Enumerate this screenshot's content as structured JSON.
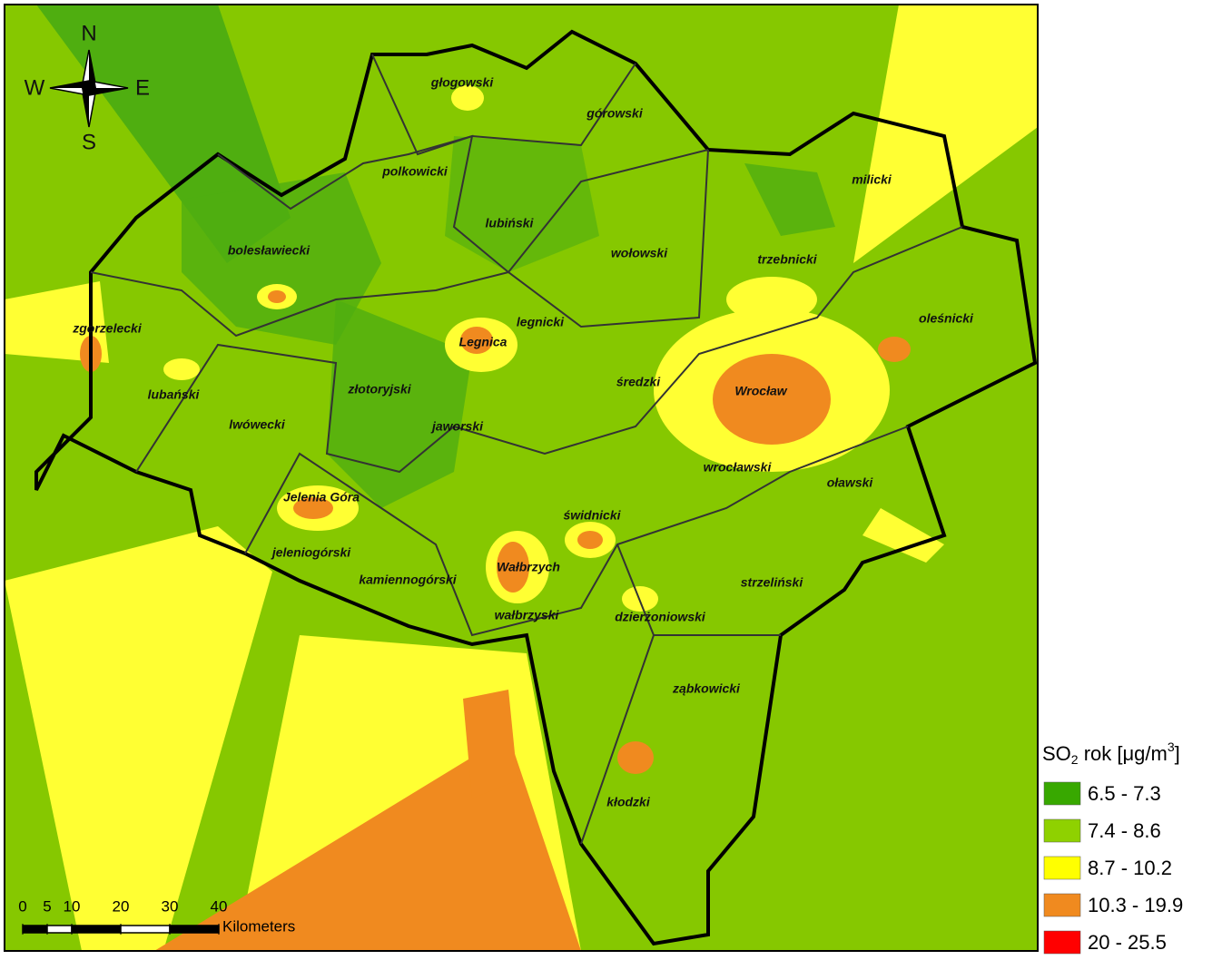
{
  "compass": {
    "n": "N",
    "w": "W",
    "e": "E",
    "s": "S"
  },
  "districts": [
    "głogowski",
    "górowski",
    "milicki",
    "polkowicki",
    "lubiński",
    "wołowski",
    "trzebnicki",
    "bolesławiecki",
    "oleśnicki",
    "zgorzelecki",
    "legnicki",
    "Legnica",
    "średzki",
    "Wrocław",
    "lubański",
    "złotoryjski",
    "jaworski",
    "lwówecki",
    "wrocławski",
    "oławski",
    "Jelenia Góra",
    "świdnicki",
    "jeleniogórski",
    "Wałbrzych",
    "kamiennogórski",
    "strzeliński",
    "wałbrzyski",
    "dzierżoniowski",
    "ząbkowicki",
    "kłodzki"
  ],
  "scale": {
    "ticks": [
      0,
      5,
      10,
      20,
      30,
      40
    ],
    "unit": "Kilometers"
  },
  "legend": {
    "title": {
      "base": "SO",
      "sub": "2",
      "mid": " rok [μg/m",
      "sup": "3",
      "end": "]"
    },
    "items": [
      {
        "label": "6.5 - 7.3",
        "color": "#38a800"
      },
      {
        "label": "7.4 - 8.6",
        "color": "#8fd100"
      },
      {
        "label": "8.7 - 10.2",
        "color": "#ffff00"
      },
      {
        "label": "10.3 - 19.9",
        "color": "#f08a1f"
      },
      {
        "label": "20 - 25.5",
        "color": "#ff0000"
      }
    ]
  }
}
